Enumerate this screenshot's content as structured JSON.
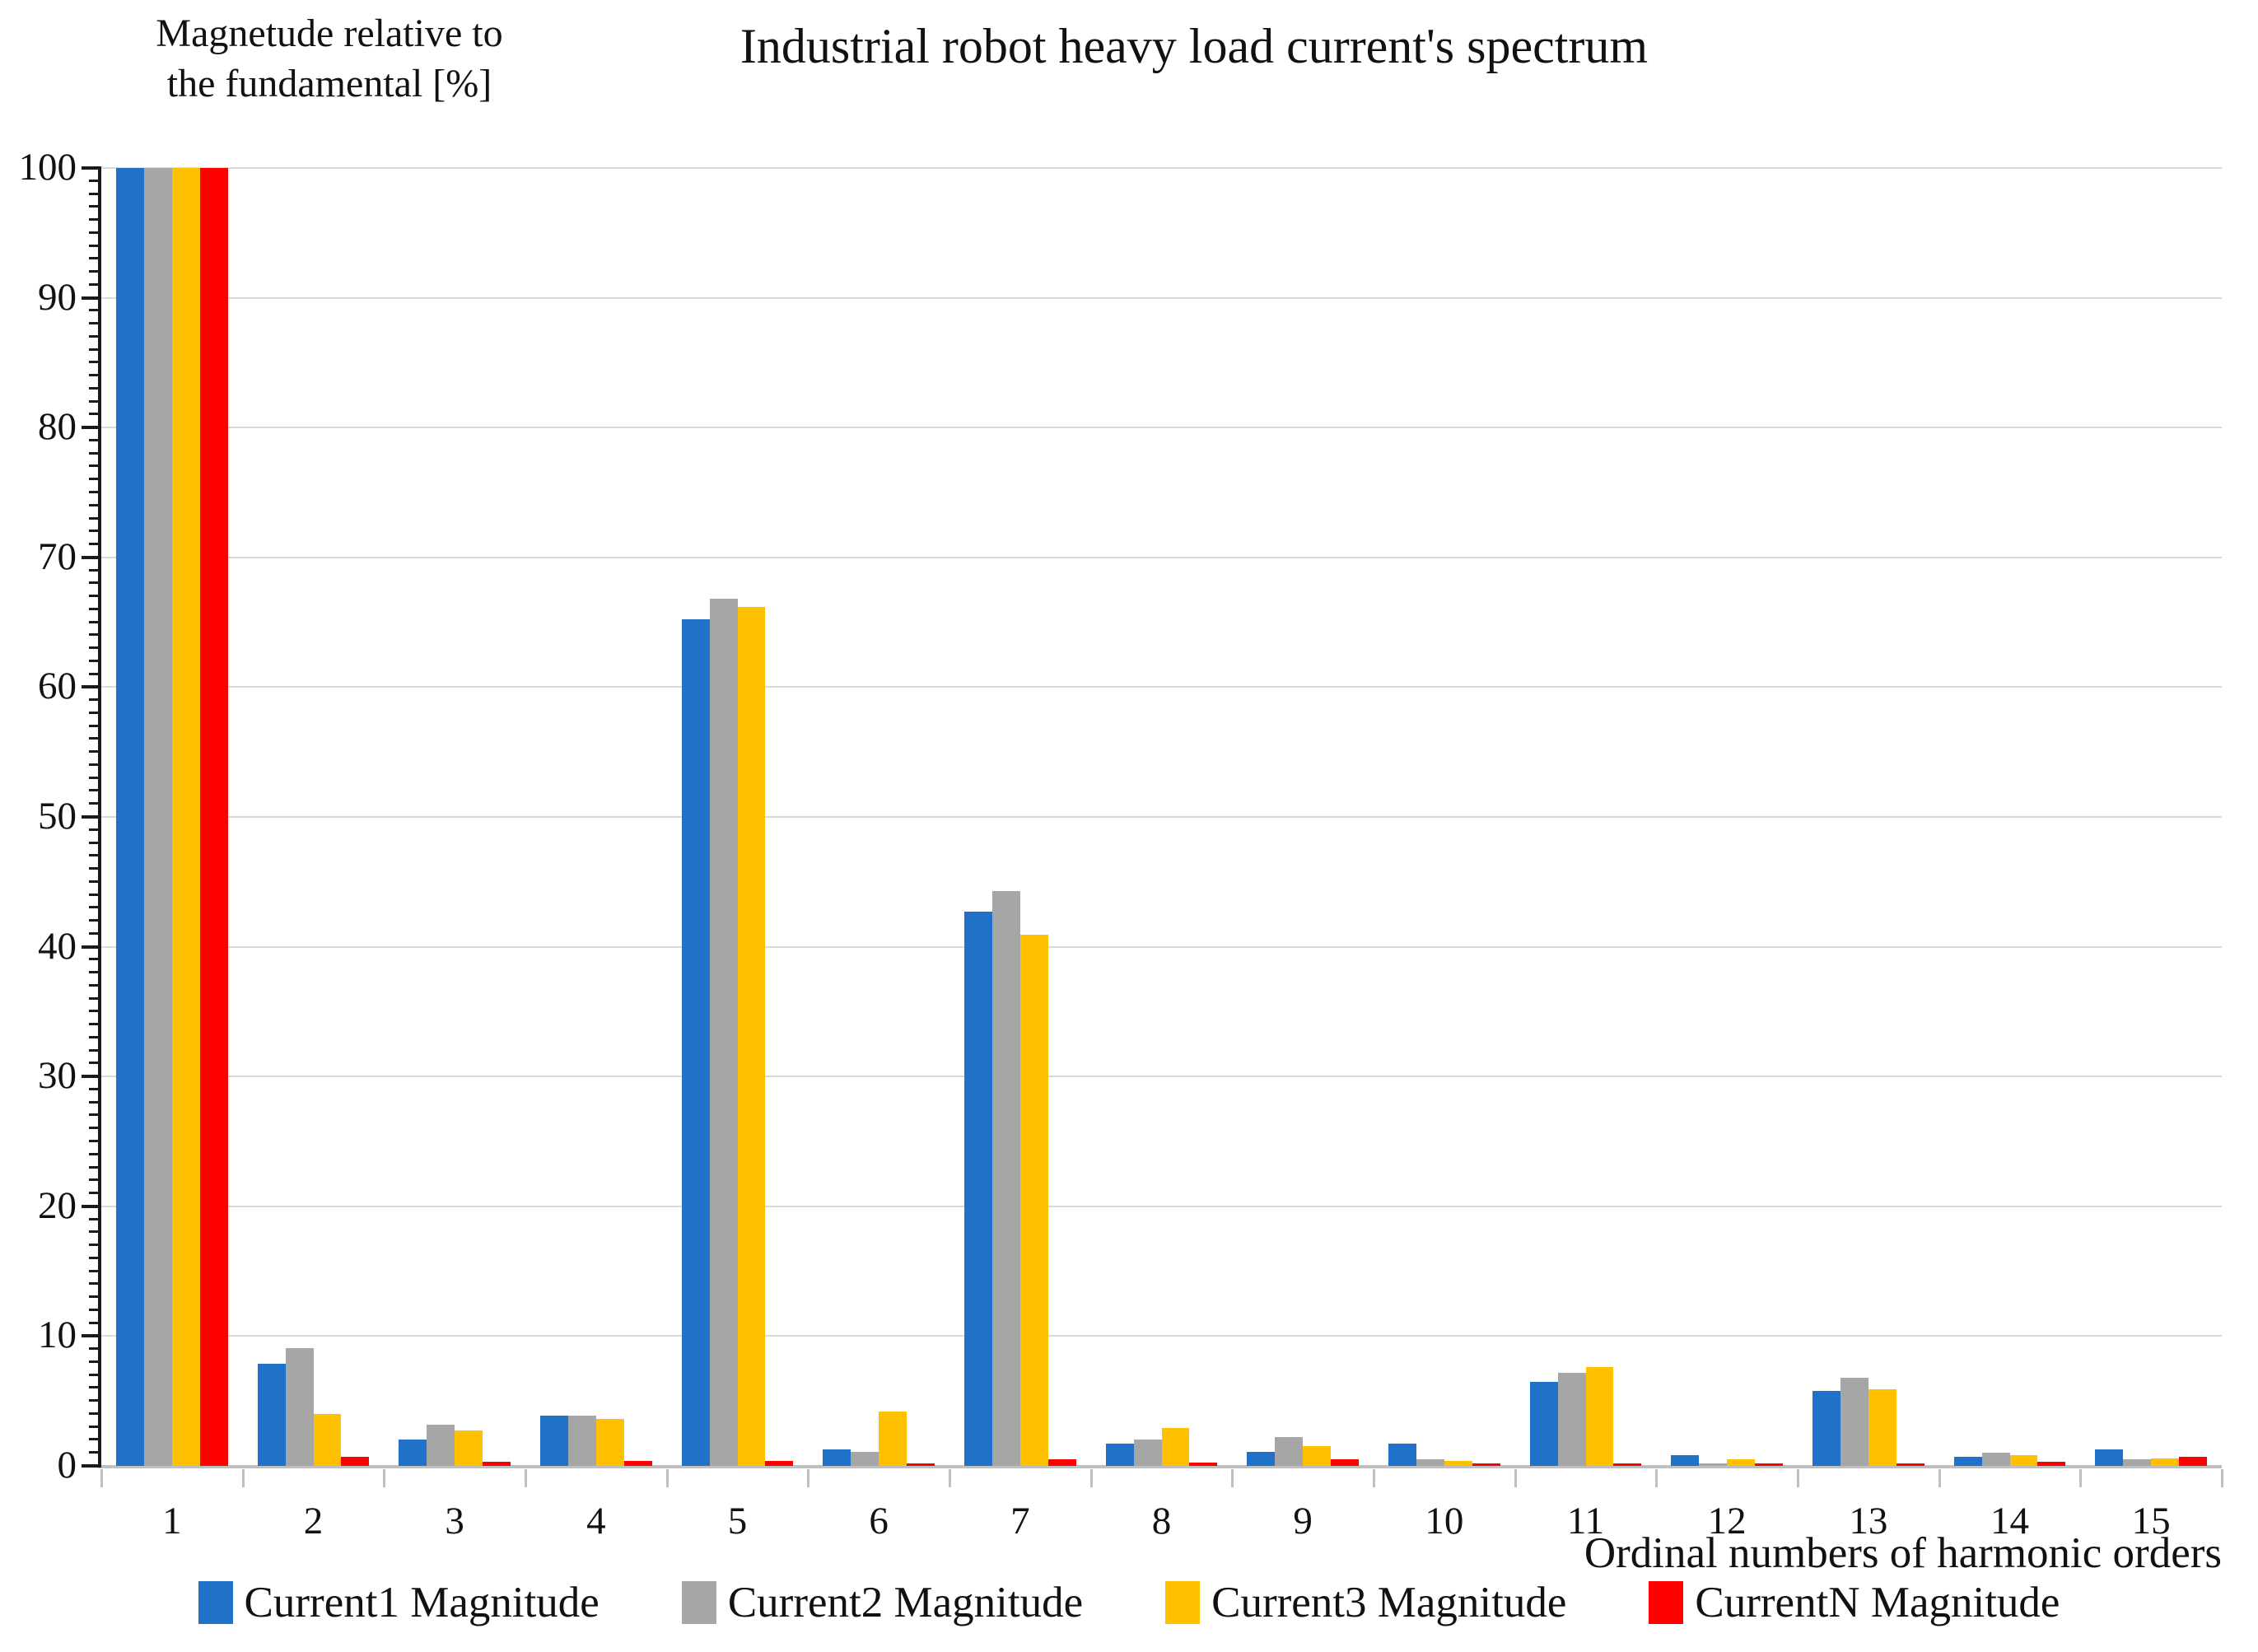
{
  "title": "Industrial robot heavy load current's spectrum",
  "y_axis_label_line1": "Magnetude relative to",
  "y_axis_label_line2": "the fundamental [%]",
  "x_axis_title": "Ordinal numbers of harmonic orders",
  "colors": {
    "series_blue": "#1F72C8",
    "series_gray": "#A6A6A6",
    "series_yellow": "#FFC000",
    "series_red": "#FF0000",
    "gridline": "#D9D9D9",
    "x_axis_line": "#BFBFBF",
    "y_axis_line": "#1A1A1A"
  },
  "chart_data": {
    "type": "bar",
    "title": "Industrial robot heavy load current's spectrum",
    "ylabel": "Magnetude relative to the fundamental [%]",
    "xlabel": "Ordinal numbers of harmonic orders",
    "ylim": [
      0,
      100
    ],
    "yticks": [
      0,
      10,
      20,
      30,
      40,
      50,
      60,
      70,
      80,
      90,
      100
    ],
    "grid": true,
    "legend_position": "bottom",
    "categories": [
      "1",
      "2",
      "3",
      "4",
      "5",
      "6",
      "7",
      "8",
      "9",
      "10",
      "11",
      "12",
      "13",
      "14",
      "15"
    ],
    "series": [
      {
        "name": "Current1 Magnitude",
        "color": "#1F72C8",
        "values": [
          100,
          7.9,
          2.0,
          3.9,
          65.2,
          1.3,
          42.7,
          1.7,
          1.1,
          1.7,
          6.5,
          0.8,
          5.8,
          0.7,
          1.3
        ]
      },
      {
        "name": "Current2 Magnitude",
        "color": "#A6A6A6",
        "values": [
          100,
          9.1,
          3.2,
          3.9,
          66.8,
          1.1,
          44.3,
          2.0,
          2.2,
          0.5,
          7.2,
          0.2,
          6.8,
          1.0,
          0.5
        ]
      },
      {
        "name": "Current3 Magnitude",
        "color": "#FFC000",
        "values": [
          100,
          4.0,
          2.7,
          3.6,
          66.2,
          4.2,
          40.9,
          2.9,
          1.5,
          0.4,
          7.6,
          0.5,
          5.9,
          0.8,
          0.6
        ]
      },
      {
        "name": "CurrentN Magnitude",
        "color": "#FF0000",
        "values": [
          100,
          0.7,
          0.3,
          0.4,
          0.4,
          0.2,
          0.5,
          0.25,
          0.5,
          0.2,
          0.2,
          0.2,
          0.2,
          0.3,
          0.7
        ]
      }
    ]
  }
}
